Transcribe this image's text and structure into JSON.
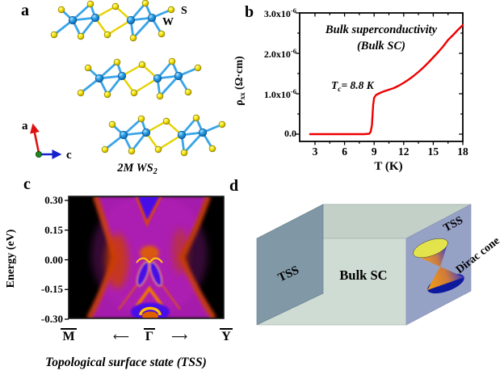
{
  "figure": {
    "panel_labels": {
      "a": "a",
      "b": "b",
      "c": "c",
      "d": "d"
    }
  },
  "panel_a": {
    "atom_label_s": "S",
    "atom_label_w": "W",
    "axis_a": "a",
    "axis_c": "c",
    "caption_main": "2M WS",
    "caption_sub": "2"
  },
  "panel_b": {
    "title_line1": "Bulk superconductivity",
    "title_line2": "(Bulk SC)",
    "annotation_t": "T",
    "annotation_sub": "c",
    "annotation_rest": "= 8.8 K",
    "ylabel_rho": "ρ",
    "ylabel_rho_sub": "xx",
    "ylabel_units": " (Ω·cm)",
    "xlabel": "T (K)",
    "ytick_labels": [
      {
        "base": "3.0x10",
        "exp": "-6",
        "value": 3.0
      },
      {
        "base": "2.0x10",
        "exp": "-6",
        "value": 2.0
      },
      {
        "base": "1.0x10",
        "exp": "-6",
        "value": 1.0
      },
      {
        "base": "0.0",
        "exp": "",
        "value": 0.0
      }
    ],
    "xtick_labels": [
      "3",
      "6",
      "9",
      "12",
      "15",
      "18"
    ]
  },
  "panel_c": {
    "ylabel": "Energy (eV)",
    "ytick_labels": [
      "0.30",
      "0.15",
      "0.00",
      "-0.15",
      "-0.30"
    ],
    "xpoint_labels": [
      "M",
      "Γ",
      "Y"
    ],
    "arrow_left": "⟵",
    "arrow_right": "⟶",
    "caption": "Topological surface state (TSS)"
  },
  "panel_d": {
    "left_face_label": "TSS",
    "bulk_label": "Bulk SC",
    "right_face_label": "TSS",
    "cone_label": "Dirac cone"
  },
  "colors": {
    "curve": "#ee0000",
    "w_atom_bond": "#3aa5e8",
    "s_atom_bond": "#e6d200",
    "band_bg": "#000000",
    "band_magenta": "#a51bac",
    "band_orange": "#d14301",
    "band_blue": "#4609e6",
    "box_top": "#c2d0c7",
    "box_front": "#cfdcd4",
    "left_plane": "#7b94a4",
    "right_plane": "#96a1c6"
  },
  "chart_data": [
    {
      "type": "line",
      "panel": "b",
      "title": "Bulk superconductivity (Bulk SC)",
      "xlabel": "T (K)",
      "ylabel": "ρxx (Ω·cm)",
      "xlim": [
        1.4,
        18
      ],
      "ylim": [
        0,
        3e-06
      ],
      "xticks": [
        3,
        6,
        9,
        12,
        15,
        18
      ],
      "yticks": [
        0.0,
        1e-06,
        2e-06,
        3e-06
      ],
      "annotation": "Tc = 8.8 K (superconducting transition)",
      "series": [
        {
          "name": "rho_xx",
          "color": "#ee0000",
          "unit": "Ohm·cm",
          "scale": 1e-06,
          "points": [
            [
              2.5,
              0.0
            ],
            [
              4,
              0.0
            ],
            [
              6,
              0.0
            ],
            [
              8,
              0.0
            ],
            [
              8.5,
              0.01
            ],
            [
              8.65,
              0.06
            ],
            [
              8.78,
              0.22
            ],
            [
              8.9,
              0.72
            ],
            [
              9.0,
              0.9
            ],
            [
              9.2,
              0.97
            ],
            [
              9.6,
              1.02
            ],
            [
              10,
              1.06
            ],
            [
              10.5,
              1.1
            ],
            [
              11,
              1.14
            ],
            [
              11.5,
              1.2
            ],
            [
              12,
              1.27
            ],
            [
              12.5,
              1.35
            ],
            [
              13,
              1.44
            ],
            [
              13.5,
              1.54
            ],
            [
              14,
              1.65
            ],
            [
              14.5,
              1.77
            ],
            [
              15,
              1.9
            ],
            [
              15.5,
              2.03
            ],
            [
              16,
              2.17
            ],
            [
              16.5,
              2.33
            ],
            [
              17,
              2.45
            ],
            [
              17.5,
              2.58
            ],
            [
              18,
              2.7
            ]
          ]
        }
      ]
    },
    {
      "type": "heatmap",
      "panel": "c",
      "title": "Topological surface state (TSS)",
      "ylabel": "Energy (eV)",
      "ylim": [
        -0.3,
        0.3
      ],
      "yticks": [
        0.3,
        0.15,
        0.0,
        -0.15,
        -0.3
      ],
      "x_path": [
        "M-bar",
        "Gamma-bar",
        "Y-bar"
      ],
      "colormap": "black -> purple -> magenta -> orange",
      "features": "surface spectral function along M-Gamma-Y with Dirac-cone-like topological surface states near Gamma around E = 0"
    }
  ]
}
